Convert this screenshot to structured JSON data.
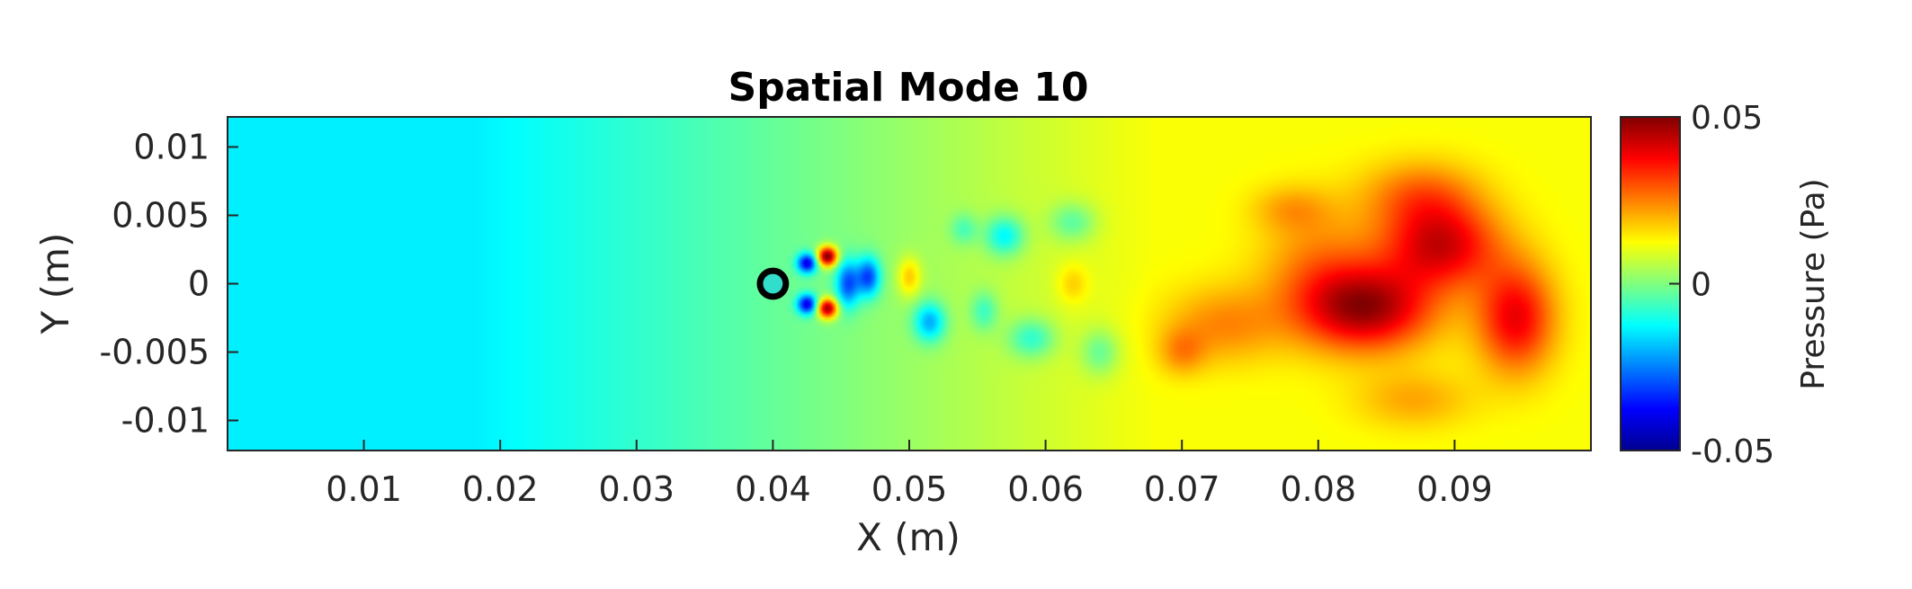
{
  "chart_data": {
    "type": "heatmap",
    "title": "Spatial Mode 10",
    "xlabel": "X (m)",
    "ylabel": "Y (m)",
    "xlim": [
      0,
      0.1
    ],
    "ylim": [
      -0.0122,
      0.0122
    ],
    "xticks": [
      "0.01",
      "0.02",
      "0.03",
      "0.04",
      "0.05",
      "0.06",
      "0.07",
      "0.08",
      "0.09"
    ],
    "xtick_values": [
      0.01,
      0.02,
      0.03,
      0.04,
      0.05,
      0.06,
      0.07,
      0.08,
      0.09
    ],
    "yticks": [
      "0.01",
      "0.005",
      "0",
      "-0.005",
      "-0.01"
    ],
    "ytick_values": [
      0.01,
      0.005,
      0,
      -0.005,
      -0.01
    ],
    "grid": false,
    "colormap": "jet",
    "colorbar": {
      "label": "Pressure (Pa)",
      "range": [
        -0.05,
        0.05
      ],
      "tick_labels": [
        "0.05",
        "0",
        "-0.05"
      ],
      "tick_values": [
        0.05,
        0,
        -0.05
      ]
    },
    "cylinder": {
      "x": 0.04,
      "y": 0,
      "diameter": 0.002
    },
    "field_features": [
      {
        "x": 0.0835,
        "y": -0.0018,
        "sx": 0.0035,
        "sy": 0.0022,
        "value": 0.034
      },
      {
        "x": 0.089,
        "y": 0.0028,
        "sx": 0.003,
        "sy": 0.0022,
        "value": 0.029
      },
      {
        "x": 0.0945,
        "y": -0.0025,
        "sx": 0.002,
        "sy": 0.0028,
        "value": 0.027
      },
      {
        "x": 0.0875,
        "y": 0.0065,
        "sx": 0.003,
        "sy": 0.0018,
        "value": 0.014
      },
      {
        "x": 0.08,
        "y": 0.0015,
        "sx": 0.003,
        "sy": 0.003,
        "value": 0.011
      },
      {
        "x": 0.073,
        "y": -0.003,
        "sx": 0.003,
        "sy": 0.002,
        "value": 0.012
      },
      {
        "x": 0.07,
        "y": -0.005,
        "sx": 0.0012,
        "sy": 0.0012,
        "value": 0.01
      },
      {
        "x": 0.078,
        "y": 0.0055,
        "sx": 0.002,
        "sy": 0.0012,
        "value": 0.008
      },
      {
        "x": 0.087,
        "y": -0.0085,
        "sx": 0.003,
        "sy": 0.0015,
        "value": 0.009
      },
      {
        "x": 0.044,
        "y": 0.002,
        "sx": 0.0005,
        "sy": 0.0005,
        "value": 0.052
      },
      {
        "x": 0.044,
        "y": -0.0018,
        "sx": 0.0005,
        "sy": 0.0005,
        "value": 0.048
      },
      {
        "x": 0.0425,
        "y": 0.0015,
        "sx": 0.0005,
        "sy": 0.0005,
        "value": -0.04
      },
      {
        "x": 0.0425,
        "y": -0.0015,
        "sx": 0.0005,
        "sy": 0.0005,
        "value": -0.04
      },
      {
        "x": 0.0455,
        "y": 0.0,
        "sx": 0.0006,
        "sy": 0.0012,
        "value": -0.03
      },
      {
        "x": 0.047,
        "y": 0.0005,
        "sx": 0.0006,
        "sy": 0.001,
        "value": -0.032
      },
      {
        "x": 0.05,
        "y": 0.0005,
        "sx": 0.0006,
        "sy": 0.001,
        "value": 0.015
      },
      {
        "x": 0.0515,
        "y": -0.0028,
        "sx": 0.0008,
        "sy": 0.001,
        "value": -0.024
      },
      {
        "x": 0.057,
        "y": 0.0035,
        "sx": 0.001,
        "sy": 0.001,
        "value": -0.019
      },
      {
        "x": 0.059,
        "y": -0.004,
        "sx": 0.0012,
        "sy": 0.001,
        "value": -0.015
      },
      {
        "x": 0.062,
        "y": 0.0045,
        "sx": 0.0012,
        "sy": 0.001,
        "value": -0.012
      },
      {
        "x": 0.062,
        "y": 0.0,
        "sx": 0.0008,
        "sy": 0.001,
        "value": 0.008
      },
      {
        "x": 0.064,
        "y": -0.005,
        "sx": 0.001,
        "sy": 0.0012,
        "value": -0.012
      },
      {
        "x": 0.054,
        "y": 0.004,
        "sx": 0.0007,
        "sy": 0.0008,
        "value": -0.01
      },
      {
        "x": 0.0555,
        "y": -0.002,
        "sx": 0.0007,
        "sy": 0.001,
        "value": -0.012
      }
    ]
  }
}
